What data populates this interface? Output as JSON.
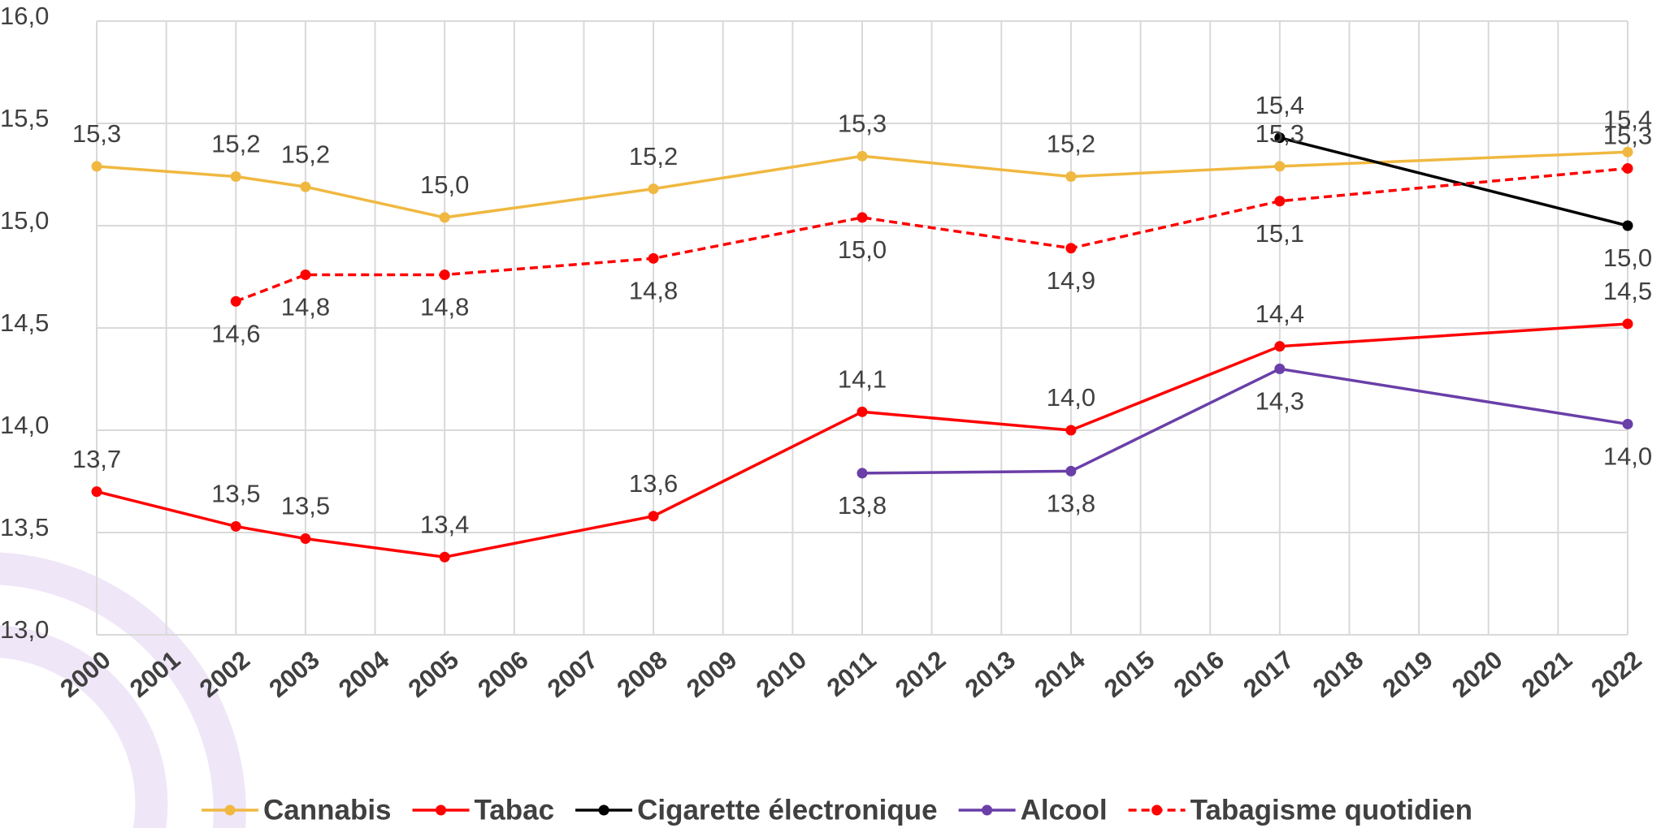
{
  "chart_data": {
    "type": "line",
    "xlim": [
      2000,
      2022
    ],
    "xticks": [
      2000,
      2001,
      2002,
      2003,
      2004,
      2005,
      2006,
      2007,
      2008,
      2009,
      2010,
      2011,
      2012,
      2013,
      2014,
      2015,
      2016,
      2017,
      2018,
      2019,
      2020,
      2021,
      2022
    ],
    "ylim": [
      13,
      16
    ],
    "yticks": [
      {
        "value": 13,
        "label": "13,0"
      },
      {
        "value": 13.5,
        "label": "13,5"
      },
      {
        "value": 14,
        "label": "14,0"
      },
      {
        "value": 14.5,
        "label": "14,5"
      },
      {
        "value": 15,
        "label": "15,0"
      },
      {
        "value": 15.5,
        "label": "15,5"
      },
      {
        "value": 16,
        "label": "16,0"
      }
    ],
    "grid": true,
    "legend": "bottom",
    "series": [
      {
        "name": "Cannabis",
        "color": "#f0b840",
        "dash": false,
        "x": [
          2000,
          2002,
          2003,
          2005,
          2008,
          2011,
          2014,
          2017,
          2022
        ],
        "values": [
          15.29,
          15.24,
          15.19,
          15.04,
          15.18,
          15.34,
          15.24,
          15.29,
          15.36
        ],
        "value_labels": [
          "15,3",
          "15,2",
          "15,2",
          "15,0",
          "15,2",
          "15,3",
          "15,2",
          "15,3",
          "15,4"
        ]
      },
      {
        "name": "Tabac",
        "color": "#ff0000",
        "dash": false,
        "x": [
          2000,
          2002,
          2003,
          2005,
          2008,
          2011,
          2014,
          2017,
          2022
        ],
        "values": [
          13.7,
          13.53,
          13.47,
          13.38,
          13.58,
          14.09,
          14.0,
          14.41,
          14.52
        ],
        "value_labels": [
          "13,7",
          "13,5",
          "13,5",
          "13,4",
          "13,6",
          "14,1",
          "14,0",
          "14,4",
          "14,5"
        ]
      },
      {
        "name": "Cigarette électronique",
        "color": "#000000",
        "dash": false,
        "x": [
          2017,
          2022
        ],
        "values": [
          15.43,
          15.0
        ],
        "value_labels": [
          "15,4",
          "15,0"
        ]
      },
      {
        "name": "Alcool",
        "color": "#6a3fa8",
        "dash": false,
        "x": [
          2011,
          2014,
          2017,
          2022
        ],
        "values": [
          13.79,
          13.8,
          14.3,
          14.03
        ],
        "value_labels": [
          "13,8",
          "13,8",
          "14,3",
          "14,0"
        ]
      },
      {
        "name": "Tabagisme quotidien",
        "color": "#ff0000",
        "dash": true,
        "x": [
          2002,
          2003,
          2005,
          2008,
          2011,
          2014,
          2017,
          2022
        ],
        "values": [
          14.63,
          14.76,
          14.76,
          14.84,
          15.04,
          14.89,
          15.12,
          15.28
        ],
        "value_labels": [
          "14,6",
          "14,8",
          "14,8",
          "14,8",
          "15,0",
          "14,9",
          "15,1",
          "15,3"
        ]
      }
    ]
  }
}
